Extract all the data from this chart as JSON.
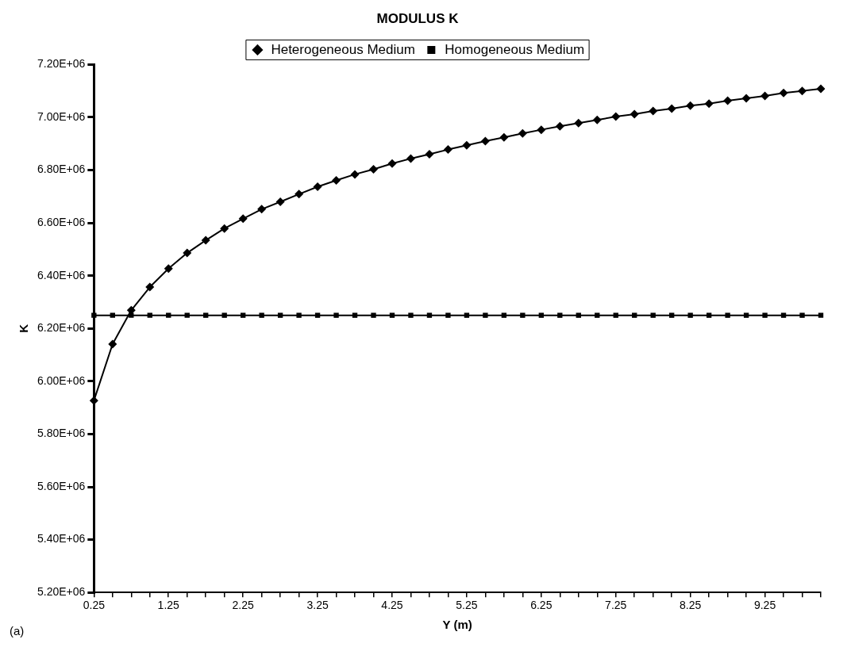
{
  "chart_data": {
    "type": "line",
    "title": "MODULUS K",
    "xlabel": "Y (m)",
    "ylabel": "K",
    "categories": [
      "0.25",
      null,
      null,
      null,
      "1.25",
      null,
      null,
      null,
      "2.25",
      null,
      null,
      null,
      "3.25",
      null,
      null,
      null,
      "4.25",
      null,
      null,
      null,
      "5.25",
      null,
      null,
      null,
      "6.25",
      null,
      null,
      null,
      "7.25",
      null,
      null,
      null,
      "8.25",
      null,
      null,
      null,
      "9.25",
      null,
      null,
      null
    ],
    "series": [
      {
        "name": "Heterogeneous Medium",
        "color": "#000000",
        "marker": "diamond",
        "values": [
          5927000,
          6141000,
          6269000,
          6357000,
          6427000,
          6486000,
          6534000,
          6579000,
          6616000,
          6652000,
          6680000,
          6709000,
          6737000,
          6761000,
          6784000,
          6803000,
          6825000,
          6844000,
          6860000,
          6878000,
          6894000,
          6910000,
          6924000,
          6939000,
          6953000,
          6966000,
          6978000,
          6990000,
          7003000,
          7012000,
          7024000,
          7033000,
          7044000,
          7052000,
          7063000,
          7072000,
          7081000,
          7092000,
          7100000,
          7108000
        ]
      },
      {
        "name": "Homogeneous Medium",
        "color": "#000000",
        "marker": "square",
        "values": [
          6250000,
          6250000,
          6250000,
          6250000,
          6250000,
          6250000,
          6250000,
          6250000,
          6250000,
          6250000,
          6250000,
          6250000,
          6250000,
          6250000,
          6250000,
          6250000,
          6250000,
          6250000,
          6250000,
          6250000,
          6250000,
          6250000,
          6250000,
          6250000,
          6250000,
          6250000,
          6250000,
          6250000,
          6250000,
          6250000,
          6250000,
          6250000,
          6250000,
          6250000,
          6250000,
          6250000,
          6250000,
          6250000,
          6250000,
          6250000
        ]
      }
    ],
    "ylim": [
      5200000,
      7200000
    ],
    "yticks": [
      {
        "value": 5200000,
        "label": "5.20E+06"
      },
      {
        "value": 5400000,
        "label": "5.40E+06"
      },
      {
        "value": 5600000,
        "label": "5.60E+06"
      },
      {
        "value": 5800000,
        "label": "5.80E+06"
      },
      {
        "value": 6000000,
        "label": "6.00E+06"
      },
      {
        "value": 6200000,
        "label": "6.20E+06"
      },
      {
        "value": 6400000,
        "label": "6.40E+06"
      },
      {
        "value": 6600000,
        "label": "6.60E+06"
      },
      {
        "value": 6800000,
        "label": "6.80E+06"
      },
      {
        "value": 7000000,
        "label": "7.00E+06"
      },
      {
        "value": 7200000,
        "label": "7.20E+06"
      }
    ],
    "grid": false,
    "legend": "top",
    "line_style": "solid",
    "annotations": [
      "(a)"
    ]
  }
}
